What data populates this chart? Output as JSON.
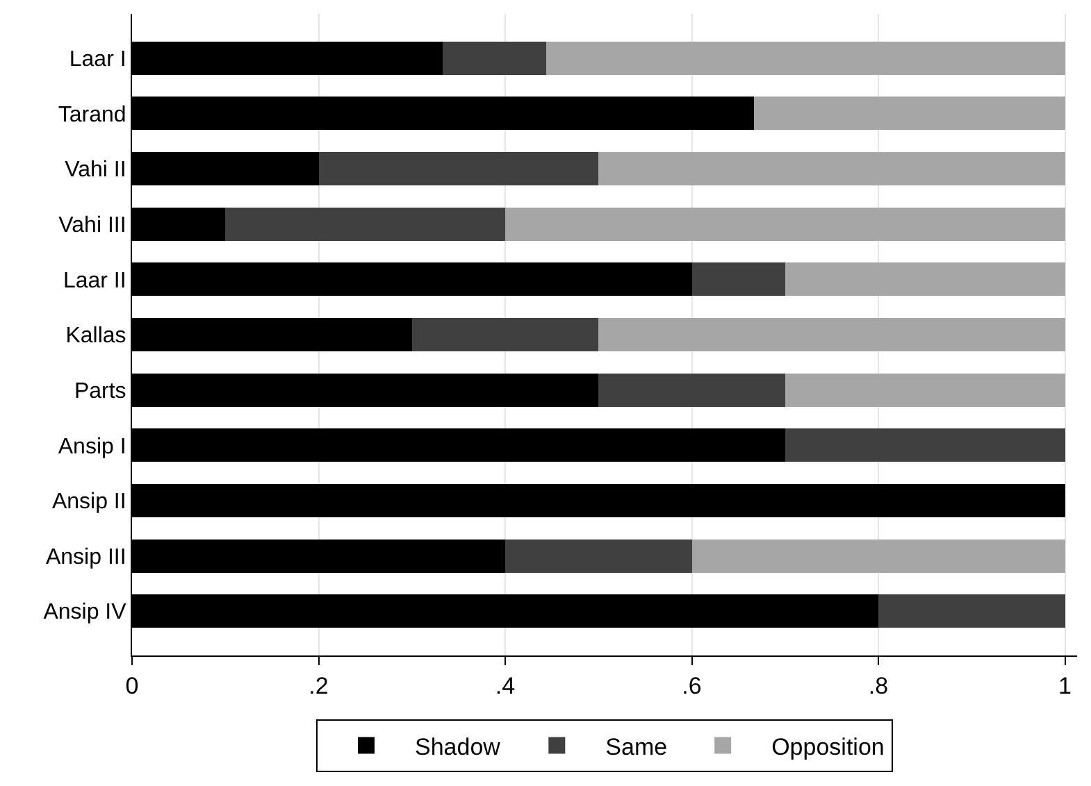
{
  "chart_data": {
    "type": "bar",
    "orientation": "horizontal",
    "stacked": true,
    "categories": [
      "Laar I",
      "Tarand",
      "Vahi II",
      "Vahi III",
      "Laar II",
      "Kallas",
      "Parts",
      "Ansip I",
      "Ansip II",
      "Ansip III",
      "Ansip IV"
    ],
    "series": [
      {
        "name": "Shadow",
        "color": "#000000",
        "values": [
          0.333,
          0.667,
          0.2,
          0.1,
          0.6,
          0.3,
          0.5,
          0.7,
          1,
          0.4,
          0.8
        ]
      },
      {
        "name": "Same",
        "color": "#404040",
        "values": [
          0.111,
          0,
          0.3,
          0.3,
          0.1,
          0.2,
          0.2,
          0.3,
          0,
          0.2,
          0.2
        ]
      },
      {
        "name": "Opposition",
        "color": "#a6a6a6",
        "values": [
          0.556,
          0.333,
          0.5,
          0.6,
          0.3,
          0.5,
          0.3,
          0,
          0,
          0.4,
          0
        ]
      }
    ],
    "xlim": [
      0,
      1.013
    ],
    "xticks": [
      0,
      {
        "value": 0.2,
        "label": ".2"
      },
      {
        "value": 0.4,
        "label": ".4"
      },
      {
        "value": 0.6,
        "label": ".6"
      },
      {
        "value": 0.8,
        "label": ".8"
      },
      1
    ],
    "grid": "x",
    "legend": "bottom"
  }
}
